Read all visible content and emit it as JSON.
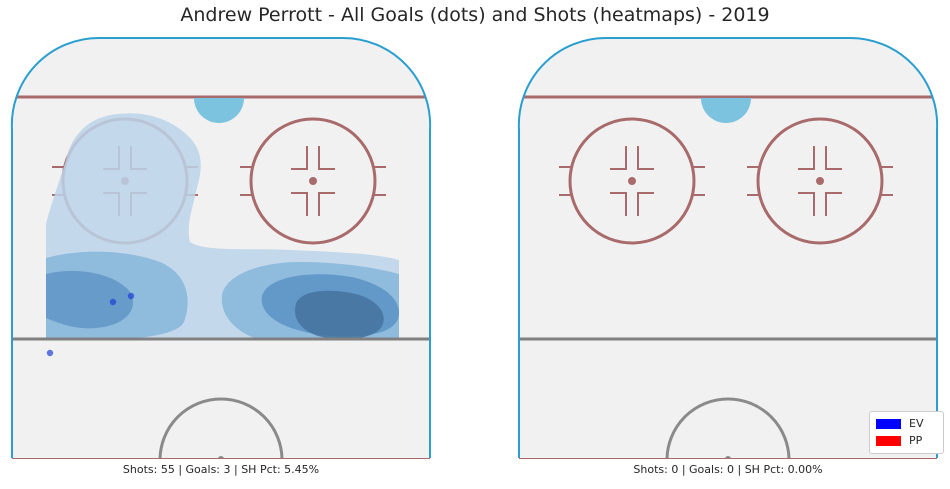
{
  "title": "Andrew Perrott - All Goals (dots) and Shots (heatmaps) - 2019",
  "colors": {
    "rink_fill": "#f1f1f1",
    "boards": "#2a9fcf",
    "red_line": "#a86a6a",
    "crease": "#7cc3e0",
    "blue_line": "#808080",
    "heat_light": "#bcd4ea",
    "heat_mid": "#86b6da",
    "heat_dark": "#5b93c6",
    "heat_darkest": "#45729f",
    "goal_dot": "#1f3fd6",
    "ev": "#0000ff",
    "pp": "#ff0000"
  },
  "panels": [
    {
      "stats": "Shots: 55 | Goals: 3 | SH Pct: 5.45%"
    },
    {
      "stats": "Shots: 0 | Goals: 0 | SH Pct: 0.00%"
    }
  ],
  "legend": [
    {
      "label": "EV",
      "color": "#0000ff"
    },
    {
      "label": "PP",
      "color": "#ff0000"
    }
  ],
  "chart_data": [
    {
      "type": "scatter",
      "series": [
        {
          "name": "EV",
          "points": [
            [
              -30,
              54
            ],
            [
              -36,
              52
            ],
            [
              -57,
              35
            ]
          ]
        }
      ],
      "heatmap": "kernel density of shot locations",
      "stats": {
        "shots": 55,
        "goals": 3,
        "sh_pct": "5.45%"
      }
    },
    {
      "type": "scatter",
      "series": [
        {
          "name": "EV",
          "points": []
        }
      ],
      "stats": {
        "shots": 0,
        "goals": 0,
        "sh_pct": "0.00%"
      }
    }
  ]
}
